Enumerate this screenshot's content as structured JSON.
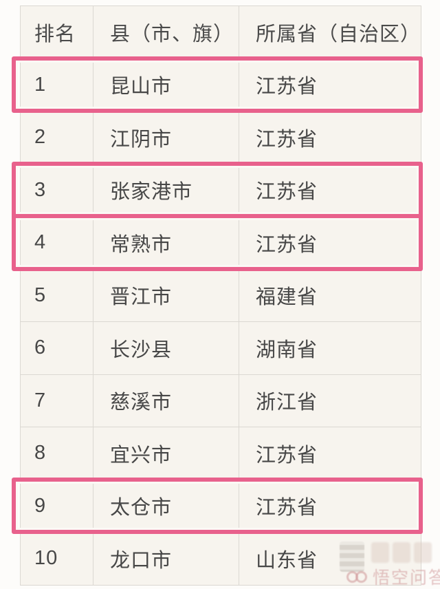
{
  "table": {
    "columns": [
      {
        "key": "rank",
        "label": "排名"
      },
      {
        "key": "county",
        "label": "县（市、旗）"
      },
      {
        "key": "province",
        "label": "所属省（自治区）"
      }
    ],
    "rows": [
      {
        "rank": "1",
        "county": "昆山市",
        "province": "江苏省",
        "highlighted": true
      },
      {
        "rank": "2",
        "county": "江阴市",
        "province": "江苏省",
        "highlighted": false
      },
      {
        "rank": "3",
        "county": "张家港市",
        "province": "江苏省",
        "highlighted": true
      },
      {
        "rank": "4",
        "county": "常熟市",
        "province": "江苏省",
        "highlighted": true
      },
      {
        "rank": "5",
        "county": "晋江市",
        "province": "福建省",
        "highlighted": false
      },
      {
        "rank": "6",
        "county": "长沙县",
        "province": "湖南省",
        "highlighted": false
      },
      {
        "rank": "7",
        "county": "慈溪市",
        "province": "浙江省",
        "highlighted": false
      },
      {
        "rank": "8",
        "county": "宜兴市",
        "province": "江苏省",
        "highlighted": false
      },
      {
        "rank": "9",
        "county": "太仓市",
        "province": "江苏省",
        "highlighted": true
      },
      {
        "rank": "10",
        "county": "龙口市",
        "province": "山东省",
        "highlighted": false
      }
    ]
  },
  "colors": {
    "highlight": "#e8618c",
    "cell_background": "#f7f4ee",
    "grid_line": "#dbd8d2",
    "text": "#474747"
  },
  "watermark": {
    "logo": "wukong-glasses-icon",
    "text": "悟空问答"
  }
}
